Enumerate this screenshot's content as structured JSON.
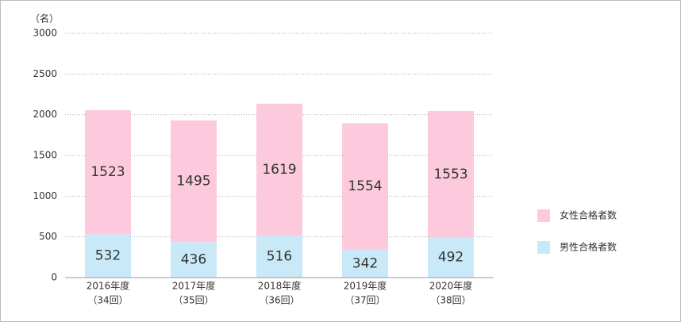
{
  "chart_data": {
    "type": "stacked-bar",
    "y_label": "（名）",
    "categories": [
      [
        "2016年度",
        "（34回）"
      ],
      [
        "2017年度",
        "（35回）"
      ],
      [
        "2018年度",
        "（36回）"
      ],
      [
        "2019年度",
        "（37回）"
      ],
      [
        "2020年度",
        "（38回）"
      ]
    ],
    "series": [
      {
        "name": "男性合格者数",
        "color": "#c9e9f8",
        "values": [
          532,
          436,
          516,
          342,
          492
        ]
      },
      {
        "name": "女性合格者数",
        "color": "#fdc9dc",
        "values": [
          1523,
          1495,
          1619,
          1554,
          1553
        ]
      }
    ],
    "ylim": [
      0,
      3000
    ],
    "yticks": [
      0,
      500,
      1000,
      1500,
      2000,
      2500,
      3000
    ],
    "grid": true,
    "legend": "right"
  }
}
